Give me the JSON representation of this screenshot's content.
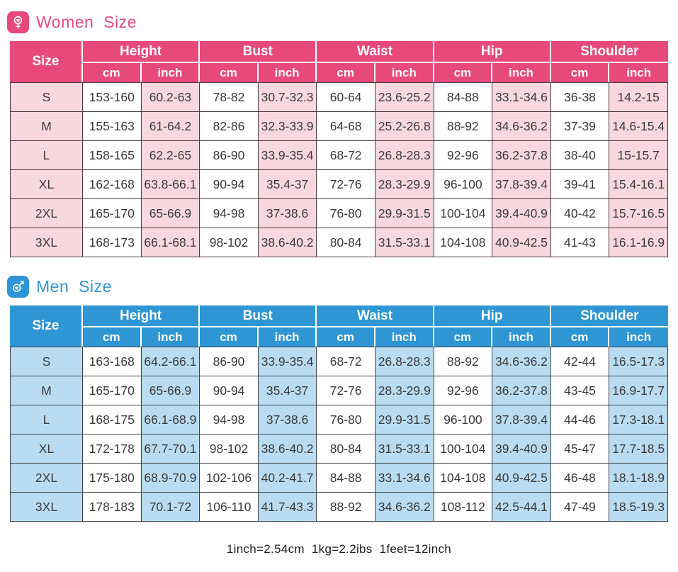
{
  "women": {
    "title": "Women Size",
    "icon": "female-heart-icon",
    "size_label": "Size",
    "units": {
      "cm": "cm",
      "inch": "inch"
    },
    "groups": [
      {
        "label": "Height"
      },
      {
        "label": "Bust"
      },
      {
        "label": "Waist"
      },
      {
        "label": "Hip"
      },
      {
        "label": "Shoulder"
      }
    ],
    "colors": {
      "accent": "#e8497b",
      "light": "#f8d7de",
      "border": "#4a3a40"
    },
    "rows": [
      {
        "size": "S",
        "values": [
          "153-160",
          "60.2-63",
          "78-82",
          "30.7-32.3",
          "60-64",
          "23.6-25.2",
          "84-88",
          "33.1-34.6",
          "36-38",
          "14.2-15"
        ]
      },
      {
        "size": "M",
        "values": [
          "155-163",
          "61-64.2",
          "82-86",
          "32.3-33.9",
          "64-68",
          "25.2-26.8",
          "88-92",
          "34.6-36.2",
          "37-39",
          "14.6-15.4"
        ]
      },
      {
        "size": "L",
        "values": [
          "158-165",
          "62.2-65",
          "86-90",
          "33.9-35.4",
          "68-72",
          "26.8-28.3",
          "92-96",
          "36.2-37.8",
          "38-40",
          "15-15.7"
        ]
      },
      {
        "size": "XL",
        "values": [
          "162-168",
          "63.8-66.1",
          "90-94",
          "35.4-37",
          "72-76",
          "28.3-29.9",
          "96-100",
          "37.8-39.4",
          "39-41",
          "15.4-16.1"
        ]
      },
      {
        "size": "2XL",
        "values": [
          "165-170",
          "65-66.9",
          "94-98",
          "37-38.6",
          "76-80",
          "29.9-31.5",
          "100-104",
          "39.4-40.9",
          "40-42",
          "15.7-16.5"
        ]
      },
      {
        "size": "3XL",
        "values": [
          "168-173",
          "66.1-68.1",
          "98-102",
          "38.6-40.2",
          "80-84",
          "31.5-33.1",
          "104-108",
          "40.9-42.5",
          "41-43",
          "16.1-16.9"
        ]
      }
    ]
  },
  "men": {
    "title": "Men Size",
    "icon": "male-heart-icon",
    "size_label": "Size",
    "units": {
      "cm": "cm",
      "inch": "inch"
    },
    "groups": [
      {
        "label": "Height"
      },
      {
        "label": "Bust"
      },
      {
        "label": "Waist"
      },
      {
        "label": "Hip"
      },
      {
        "label": "Shoulder"
      }
    ],
    "colors": {
      "accent": "#2e96d5",
      "light": "#b9dcf2",
      "border": "#3c4248"
    },
    "rows": [
      {
        "size": "S",
        "values": [
          "163-168",
          "64.2-66.1",
          "86-90",
          "33.9-35.4",
          "68-72",
          "26.8-28.3",
          "88-92",
          "34.6-36.2",
          "42-44",
          "16.5-17.3"
        ]
      },
      {
        "size": "M",
        "values": [
          "165-170",
          "65-66.9",
          "90-94",
          "35.4-37",
          "72-76",
          "28.3-29.9",
          "92-96",
          "36.2-37.8",
          "43-45",
          "16.9-17.7"
        ]
      },
      {
        "size": "L",
        "values": [
          "168-175",
          "66.1-68.9",
          "94-98",
          "37-38.6",
          "76-80",
          "29.9-31.5",
          "96-100",
          "37.8-39.4",
          "44-46",
          "17.3-18.1"
        ]
      },
      {
        "size": "XL",
        "values": [
          "172-178",
          "67.7-70.1",
          "98-102",
          "38.6-40.2",
          "80-84",
          "31.5-33.1",
          "100-104",
          "39.4-40.9",
          "45-47",
          "17.7-18.5"
        ]
      },
      {
        "size": "2XL",
        "values": [
          "175-180",
          "68.9-70.9",
          "102-106",
          "40.2-41.7",
          "84-88",
          "33.1-34.6",
          "104-108",
          "40.9-42.5",
          "46-48",
          "18.1-18.9"
        ]
      },
      {
        "size": "3XL",
        "values": [
          "178-183",
          "70.1-72",
          "106-110",
          "41.7-43.3",
          "88-92",
          "34.6-36.2",
          "108-112",
          "42.5-44.1",
          "47-49",
          "18.5-19.3"
        ]
      }
    ]
  },
  "footer": {
    "note": "1inch=2.54cm  1kg=2.2ibs  1feet=12inch"
  }
}
